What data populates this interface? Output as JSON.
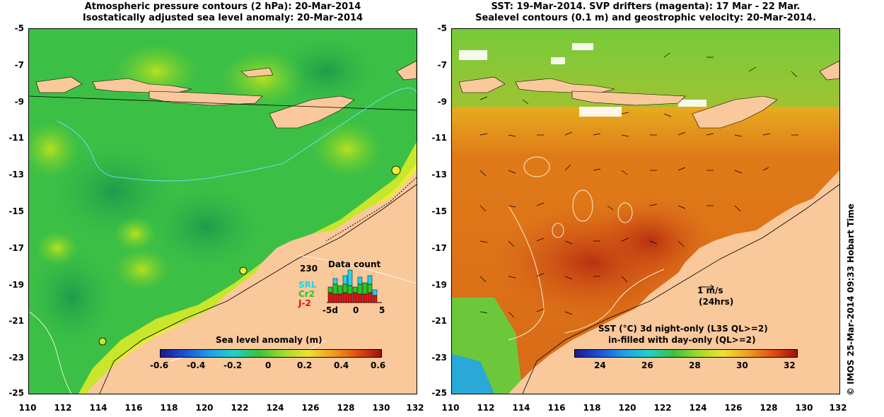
{
  "left_panel": {
    "title_line1": "Atmospheric pressure contours (2 hPa): 20-Mar-2014",
    "title_line2": "Isostatically adjusted sea level anomaly: 20-Mar-2014",
    "colorbar_title": "Sea level anomaly (m)",
    "colorbar_ticks": [
      "-0.6",
      "-0.4",
      "-0.2",
      "0",
      "0.2",
      "0.4",
      "0.6"
    ],
    "inset": {
      "title": "Data count",
      "max_label": "230",
      "series": [
        {
          "name": "SRL",
          "color": "#22d3e6"
        },
        {
          "name": "Cr2",
          "color": "#22cc22"
        },
        {
          "name": "J-2",
          "color": "#e01010"
        }
      ],
      "x_ticks": [
        "-5d",
        "0",
        "5"
      ]
    }
  },
  "right_panel": {
    "title_line1": "SST: 19-Mar-2014. SVP drifters (magenta): 17 Mar - 22 Mar.",
    "title_line2": "Sealevel contours (0.1 m) and geostrophic velocity: 20-Mar-2014.",
    "velocity_scale_label": "1 m/s",
    "velocity_scale_sub": "(24hrs)",
    "colorbar_title_line1": "SST (°C)  3d night-only (L3S QL>=2)",
    "colorbar_title_line2": "in-filled with day-only (QL>=2)",
    "colorbar_ticks": [
      "24",
      "26",
      "28",
      "30",
      "32"
    ]
  },
  "axes": {
    "y_ticks": [
      "-5",
      "-7",
      "-9",
      "-11",
      "-13",
      "-15",
      "-17",
      "-19",
      "-21",
      "-23",
      "-25"
    ],
    "x_ticks": [
      "110",
      "112",
      "114",
      "116",
      "118",
      "120",
      "122",
      "124",
      "126",
      "128",
      "130",
      "132"
    ]
  },
  "credit": "© IMOS 25-Mar-2014 09:33 Hobart Time",
  "colors": {
    "land": "#f9c89b",
    "ocean_green": "#3fc43f",
    "sst_orange": "#e07a18"
  }
}
